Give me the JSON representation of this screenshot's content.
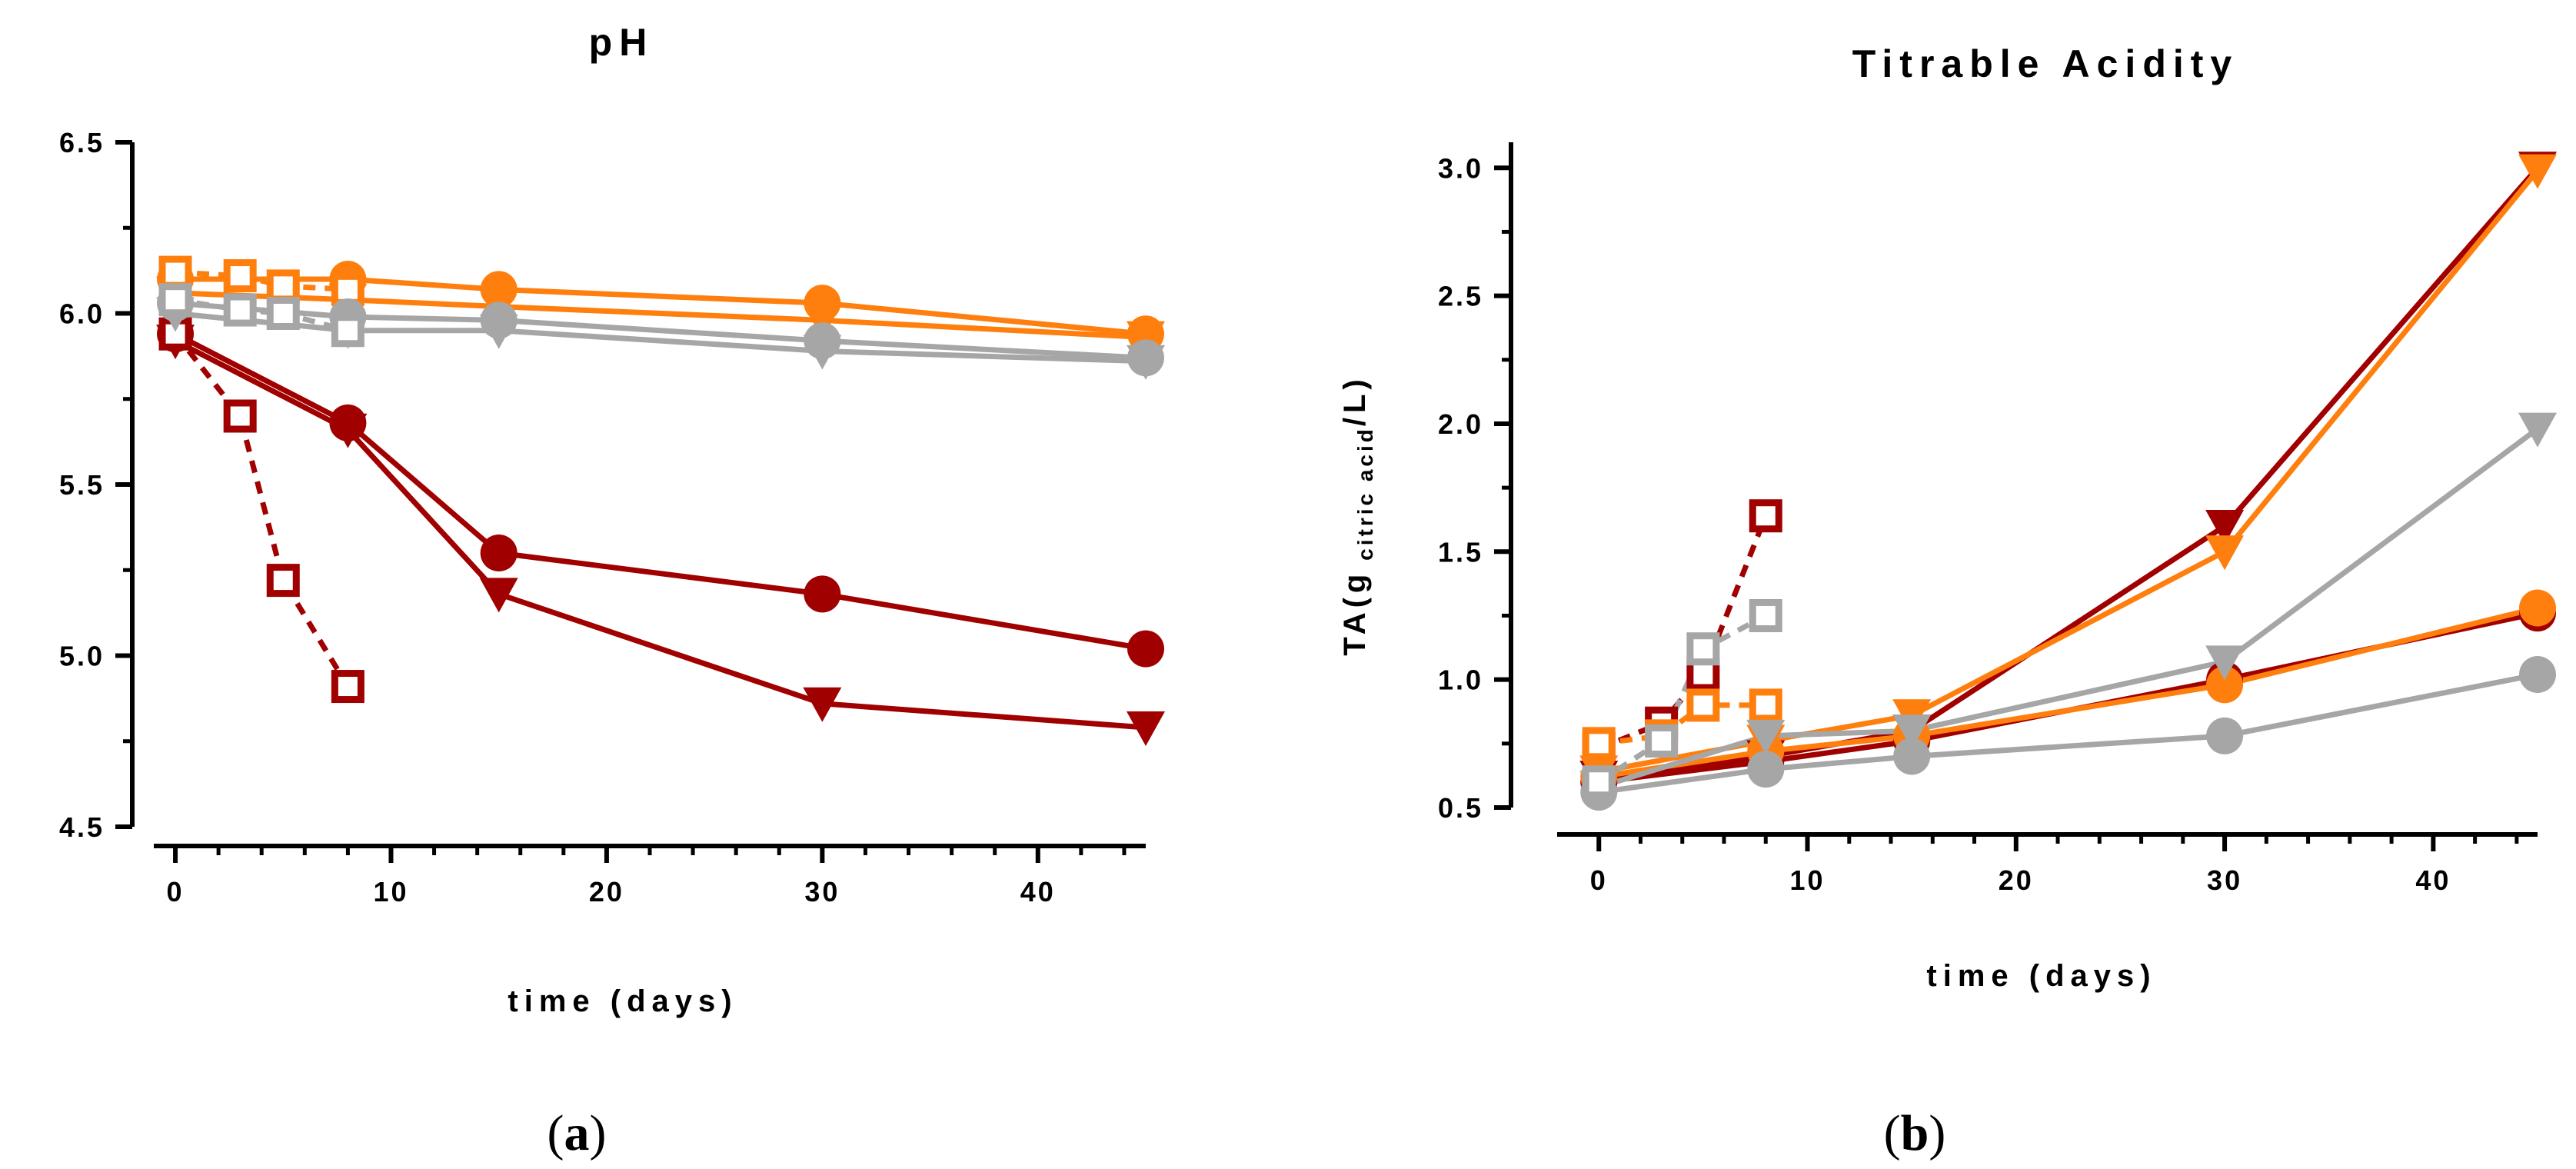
{
  "colors": {
    "dark_red": "#a10000",
    "orange": "#ff7f0e",
    "gray": "#a6a6a6",
    "axis": "#000000"
  },
  "chart_data": [
    {
      "type": "line",
      "panel_label": "(a)",
      "panel_letter": "a",
      "title": "pH",
      "xlabel": "time (days)",
      "ylabel": "",
      "xlim": [
        -1,
        45
      ],
      "ylim": [
        4.5,
        6.5
      ],
      "xticks": [
        {
          "value": 0,
          "label": "0"
        },
        {
          "value": 10,
          "label": "10"
        },
        {
          "value": 20,
          "label": "20"
        },
        {
          "value": 30,
          "label": "30"
        },
        {
          "value": 40,
          "label": "40"
        }
      ],
      "yticks": [
        {
          "value": 4.5,
          "label": "4.5"
        },
        {
          "value": 5.0,
          "label": "5.0"
        },
        {
          "value": 5.5,
          "label": "5.5"
        },
        {
          "value": 6.0,
          "label": "6.0"
        },
        {
          "value": 6.5,
          "label": "6.5"
        }
      ],
      "series": [
        {
          "name": "dark-red-circle",
          "color": "#a10000",
          "marker": "circle",
          "dashed": false,
          "x": [
            0,
            8,
            15,
            30,
            45
          ],
          "y": [
            5.94,
            5.68,
            5.3,
            5.18,
            5.02
          ]
        },
        {
          "name": "dark-red-triangle",
          "color": "#a10000",
          "marker": "triangle-down",
          "dashed": false,
          "x": [
            0,
            8,
            15,
            30,
            45
          ],
          "y": [
            5.92,
            5.66,
            5.18,
            4.86,
            4.79
          ]
        },
        {
          "name": "dark-red-square",
          "color": "#a10000",
          "marker": "square-open",
          "dashed": true,
          "x": [
            0,
            3,
            5,
            8
          ],
          "y": [
            5.94,
            5.7,
            5.22,
            4.91
          ]
        },
        {
          "name": "orange-circle",
          "color": "#ff7f0e",
          "marker": "circle",
          "dashed": false,
          "x": [
            0,
            8,
            15,
            30,
            45
          ],
          "y": [
            6.1,
            6.1,
            6.07,
            6.03,
            5.94
          ]
        },
        {
          "name": "orange-triangle",
          "color": "#ff7f0e",
          "marker": "triangle-down",
          "dashed": false,
          "x": [
            0,
            8,
            15,
            30,
            45
          ],
          "y": [
            6.06,
            6.04,
            6.02,
            5.98,
            5.93
          ]
        },
        {
          "name": "orange-square",
          "color": "#ff7f0e",
          "marker": "square-open",
          "dashed": true,
          "x": [
            0,
            3,
            5,
            8
          ],
          "y": [
            6.12,
            6.11,
            6.08,
            6.07
          ]
        },
        {
          "name": "gray-circle",
          "color": "#a6a6a6",
          "marker": "circle",
          "dashed": false,
          "x": [
            0,
            8,
            15,
            30,
            45
          ],
          "y": [
            6.03,
            5.99,
            5.98,
            5.92,
            5.87
          ]
        },
        {
          "name": "gray-triangle",
          "color": "#a6a6a6",
          "marker": "triangle-down",
          "dashed": false,
          "x": [
            0,
            8,
            15,
            30,
            45
          ],
          "y": [
            6.0,
            5.95,
            5.95,
            5.89,
            5.86
          ]
        },
        {
          "name": "gray-square",
          "color": "#a6a6a6",
          "marker": "square-open",
          "dashed": true,
          "x": [
            0,
            3,
            5,
            8
          ],
          "y": [
            6.04,
            6.01,
            6.0,
            5.95
          ]
        }
      ]
    },
    {
      "type": "line",
      "panel_label": "(b)",
      "panel_letter": "b",
      "title": "Titrable Acidity",
      "xlabel": "time (days)",
      "ylabel": "TA(g",
      "ylabel_sub": "citric acid",
      "ylabel_end": "/L)",
      "xlim": [
        -2,
        45
      ],
      "ylim": [
        0.5,
        3.1
      ],
      "xticks": [
        {
          "value": 0,
          "label": "0"
        },
        {
          "value": 10,
          "label": "10"
        },
        {
          "value": 20,
          "label": "20"
        },
        {
          "value": 30,
          "label": "30"
        },
        {
          "value": 40,
          "label": "40"
        }
      ],
      "yticks": [
        {
          "value": 0.5,
          "label": "0.5"
        },
        {
          "value": 1.0,
          "label": "1.0"
        },
        {
          "value": 1.5,
          "label": "1.5"
        },
        {
          "value": 2.0,
          "label": "2.0"
        },
        {
          "value": 2.5,
          "label": "2.5"
        },
        {
          "value": 3.0,
          "label": "3.0"
        }
      ],
      "series": [
        {
          "name": "dark-red-circle",
          "color": "#a10000",
          "marker": "circle",
          "dashed": false,
          "x": [
            0,
            8,
            15,
            30,
            45
          ],
          "y": [
            0.6,
            0.68,
            0.76,
            1.0,
            1.26
          ]
        },
        {
          "name": "dark-red-triangle",
          "color": "#a10000",
          "marker": "triangle-down",
          "dashed": false,
          "x": [
            0,
            8,
            15,
            30,
            45
          ],
          "y": [
            0.62,
            0.7,
            0.8,
            1.6,
            3.0
          ]
        },
        {
          "name": "dark-red-square",
          "color": "#a10000",
          "marker": "square-open",
          "dashed": true,
          "x": [
            0,
            3,
            5,
            8
          ],
          "y": [
            0.73,
            0.83,
            1.02,
            1.64
          ]
        },
        {
          "name": "orange-circle",
          "color": "#ff7f0e",
          "marker": "circle",
          "dashed": false,
          "x": [
            0,
            8,
            15,
            30,
            45
          ],
          "y": [
            0.62,
            0.72,
            0.78,
            0.98,
            1.28
          ]
        },
        {
          "name": "orange-triangle",
          "color": "#ff7f0e",
          "marker": "triangle-down",
          "dashed": false,
          "x": [
            0,
            8,
            15,
            30,
            45
          ],
          "y": [
            0.64,
            0.76,
            0.86,
            1.5,
            2.99
          ]
        },
        {
          "name": "orange-square",
          "color": "#ff7f0e",
          "marker": "square-open",
          "dashed": true,
          "x": [
            0,
            3,
            5,
            8
          ],
          "y": [
            0.75,
            0.78,
            0.9,
            0.9
          ]
        },
        {
          "name": "gray-circle",
          "color": "#a6a6a6",
          "marker": "circle",
          "dashed": false,
          "x": [
            0,
            8,
            15,
            30,
            45
          ],
          "y": [
            0.56,
            0.65,
            0.7,
            0.78,
            1.02
          ]
        },
        {
          "name": "gray-triangle",
          "color": "#a6a6a6",
          "marker": "triangle-down",
          "dashed": false,
          "x": [
            0,
            8,
            15,
            30,
            45
          ],
          "y": [
            0.58,
            0.78,
            0.8,
            1.07,
            1.98
          ]
        },
        {
          "name": "gray-square",
          "color": "#a6a6a6",
          "marker": "square-open",
          "dashed": true,
          "x": [
            0,
            3,
            5,
            8
          ],
          "y": [
            0.6,
            0.76,
            1.12,
            1.25
          ]
        }
      ]
    }
  ]
}
